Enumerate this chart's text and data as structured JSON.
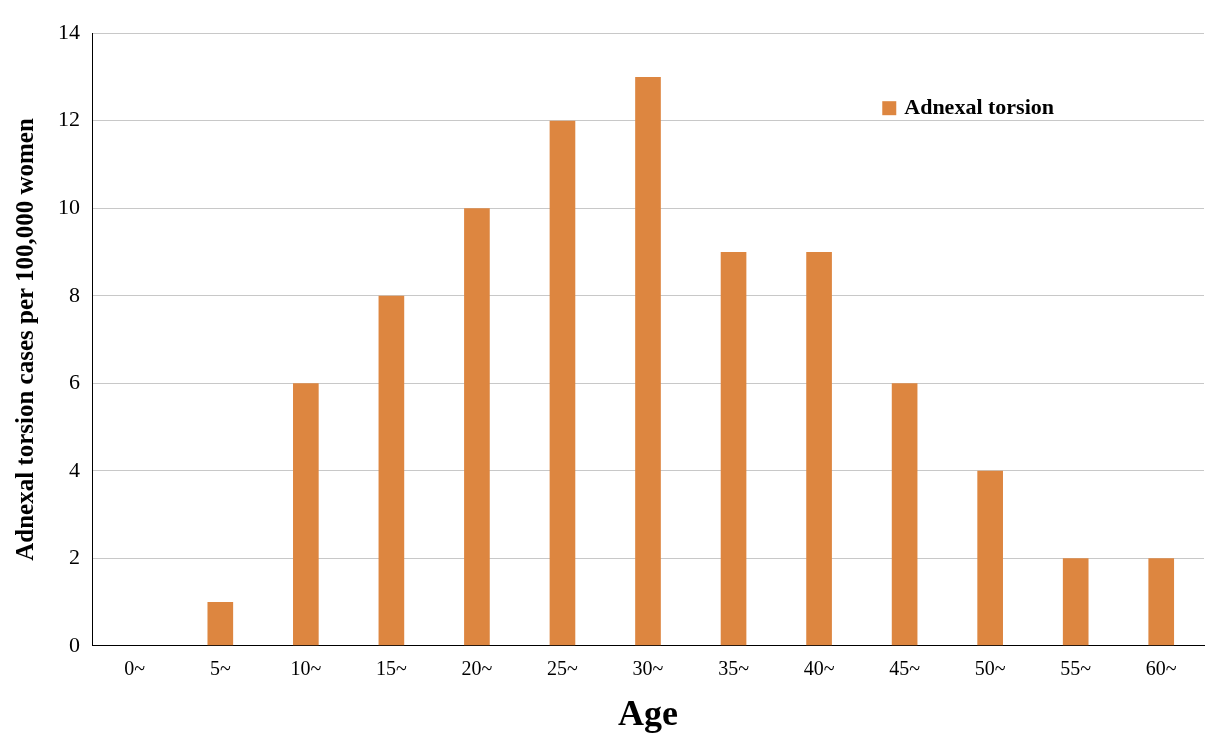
{
  "chart_data": {
    "type": "bar",
    "xlabel": "Age",
    "ylabel": "Adnexal torsion cases per 100,000 women",
    "categories": [
      "0~",
      "5~",
      "10~",
      "15~",
      "20~",
      "25~",
      "30~",
      "35~",
      "40~",
      "45~",
      "50~",
      "55~",
      "60~"
    ],
    "series": [
      {
        "name": "Adnexal torsion",
        "color": "#dd8640",
        "values": [
          0,
          1,
          6,
          8,
          10,
          12,
          13,
          9,
          9,
          6,
          4,
          2,
          2
        ]
      }
    ],
    "ylim": [
      0,
      14
    ],
    "yticks": [
      0,
      2,
      4,
      6,
      8,
      10,
      12,
      14
    ],
    "grid": "y",
    "legend": "top right"
  }
}
